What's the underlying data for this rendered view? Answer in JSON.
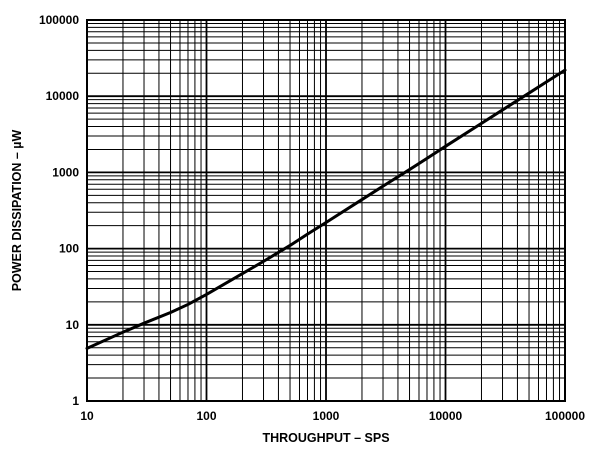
{
  "chart_data": {
    "type": "line",
    "title": "",
    "xlabel": "THROUGHPUT – SPS",
    "ylabel": "POWER DISSIPATION – µW",
    "x_scale": "log",
    "y_scale": "log",
    "xlim": [
      10,
      100000
    ],
    "ylim": [
      1,
      100000
    ],
    "grid": true,
    "legend": "none",
    "x_ticks": [
      {
        "value": 10,
        "label": "10"
      },
      {
        "value": 100,
        "label": "100"
      },
      {
        "value": 1000,
        "label": "1000"
      },
      {
        "value": 10000,
        "label": "10000"
      },
      {
        "value": 100000,
        "label": "100000"
      }
    ],
    "y_ticks": [
      {
        "value": 1,
        "label": "1"
      },
      {
        "value": 10,
        "label": "10"
      },
      {
        "value": 100,
        "label": "100"
      },
      {
        "value": 1000,
        "label": "1000"
      },
      {
        "value": 10000,
        "label": "10000"
      },
      {
        "value": 100000,
        "label": "100000"
      }
    ],
    "series": [
      {
        "color": "#000000",
        "x": [
          10,
          20,
          30,
          50,
          70,
          100,
          200,
          300,
          500,
          700,
          1000,
          2000,
          3000,
          5000,
          7000,
          10000,
          20000,
          30000,
          50000,
          70000,
          100000
        ],
        "y": [
          4.9,
          8.0,
          10.5,
          14.5,
          18.5,
          25,
          47,
          68,
          110,
          155,
          220,
          440,
          660,
          1090,
          1530,
          2200,
          4400,
          6600,
          11000,
          15400,
          22000
        ]
      }
    ]
  }
}
